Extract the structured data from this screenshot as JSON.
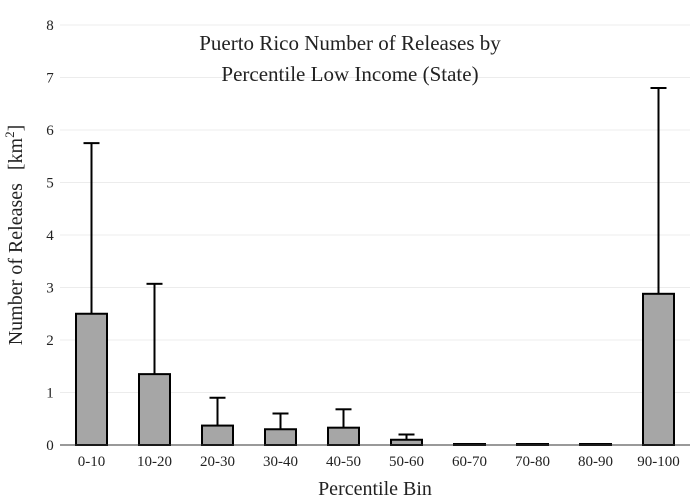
{
  "chart_data": {
    "type": "bar",
    "title_lines": [
      "Puerto Rico Number of Releases by",
      "Percentile Low Income (State)"
    ],
    "xlabel": "Percentile Bin",
    "ylabel_main": "Number of Releases",
    "ylabel_unit_base": "[km",
    "ylabel_unit_sup": "2",
    "ylabel_unit_end": "]",
    "categories": [
      "0-10",
      "10-20",
      "20-30",
      "30-40",
      "40-50",
      "50-60",
      "60-70",
      "70-80",
      "80-90",
      "90-100"
    ],
    "values": [
      2.5,
      1.35,
      0.37,
      0.3,
      0.33,
      0.1,
      0,
      0,
      0,
      2.88
    ],
    "error_upper": [
      5.75,
      3.07,
      0.9,
      0.6,
      0.68,
      0.2,
      0,
      0,
      0,
      6.8
    ],
    "ylim": [
      0,
      8
    ],
    "yticks": [
      0,
      1,
      2,
      3,
      4,
      5,
      6,
      7,
      8
    ],
    "grid": true,
    "colors": {
      "bar_fill": "#a6a6a6",
      "bar_stroke": "#000000",
      "grid": "#ececec",
      "text": "#222222"
    }
  }
}
